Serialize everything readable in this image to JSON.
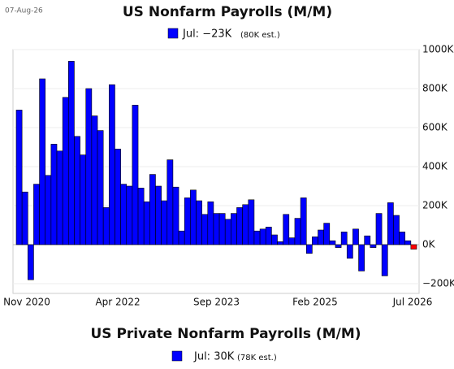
{
  "date": "07-Aug-26",
  "chart_data": [
    {
      "type": "bar",
      "title": "US Nonfarm Payrolls (M/M)",
      "categories": [
        "Nov 2020",
        null,
        null,
        null,
        null,
        null,
        null,
        null,
        null,
        null,
        null,
        null,
        null,
        null,
        null,
        null,
        null,
        "Apr 2022",
        null,
        null,
        null,
        null,
        null,
        null,
        null,
        null,
        null,
        null,
        null,
        null,
        null,
        null,
        null,
        null,
        "Sep 2023",
        null,
        null,
        null,
        null,
        null,
        null,
        null,
        null,
        null,
        null,
        null,
        null,
        null,
        null,
        null,
        null,
        "Feb 2025",
        null,
        null,
        null,
        null,
        null,
        null,
        null,
        null,
        null,
        null,
        null,
        null,
        null,
        null,
        null,
        null,
        "Jul 2026"
      ],
      "series": [
        {
          "name": "Jul: −23K",
          "note": "(80K est.)",
          "color": "#0000ff",
          "values": [
            690,
            270,
            -180,
            310,
            850,
            355,
            515,
            480,
            755,
            940,
            555,
            460,
            800,
            660,
            585,
            190,
            820,
            490,
            310,
            300,
            715,
            290,
            220,
            360,
            300,
            225,
            435,
            295,
            70,
            240,
            280,
            225,
            155,
            220,
            160,
            160,
            130,
            160,
            190,
            205,
            230,
            70,
            80,
            90,
            50,
            15,
            155,
            35,
            135,
            240,
            -45,
            40,
            75,
            110,
            20,
            -15,
            65,
            -70,
            80,
            -135,
            45,
            -15,
            160,
            -160,
            215,
            150,
            65,
            20,
            -23
          ],
          "highlight_color": "#ff0000"
        }
      ],
      "ylim": [
        -250,
        1000
      ],
      "yticks": [
        {
          "value": -200,
          "label": "−200K"
        },
        {
          "value": 0,
          "label": "0K"
        },
        {
          "value": 200,
          "label": "200K"
        },
        {
          "value": 400,
          "label": "400K"
        },
        {
          "value": 600,
          "label": "600K"
        },
        {
          "value": 800,
          "label": "800K"
        },
        {
          "value": 1000,
          "label": "1000K"
        }
      ],
      "grid": true
    },
    {
      "type": "bar",
      "title": "US Private Nonfarm Payrolls (M/M)",
      "series": [
        {
          "name": "Jul: 30K",
          "note": "(78K est.)",
          "color": "#0000ff",
          "values": []
        }
      ]
    }
  ]
}
